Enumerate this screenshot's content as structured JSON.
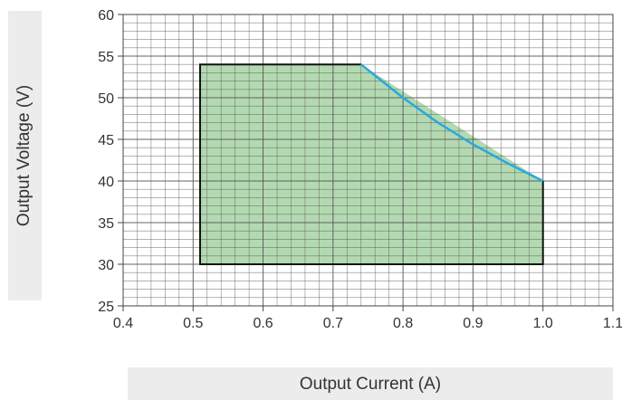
{
  "chart_data": {
    "type": "area",
    "title": "",
    "xlabel": "Output Current (A)",
    "ylabel": "Output Voltage (V)",
    "xlim": [
      0.4,
      1.1
    ],
    "ylim": [
      25,
      60
    ],
    "x_ticks": [
      "0.4",
      "0.5",
      "0.6",
      "0.7",
      "0.8",
      "0.9",
      "1.0",
      "1.1"
    ],
    "y_ticks": [
      "25",
      "30",
      "35",
      "40",
      "45",
      "50",
      "55",
      "60"
    ],
    "grid": true,
    "region": [
      {
        "x": 0.51,
        "y": 30
      },
      {
        "x": 0.51,
        "y": 54
      },
      {
        "x": 0.74,
        "y": 54
      },
      {
        "x": 1.0,
        "y": 40
      },
      {
        "x": 1.0,
        "y": 30
      }
    ],
    "constant_power_curve": [
      {
        "x": 0.74,
        "y": 54
      },
      {
        "x": 0.8,
        "y": 50
      },
      {
        "x": 0.85,
        "y": 47
      },
      {
        "x": 0.9,
        "y": 44.4
      },
      {
        "x": 0.95,
        "y": 42.1
      },
      {
        "x": 1.0,
        "y": 40
      }
    ],
    "colors": {
      "fill": "#b3d9b0",
      "outline": "#111111",
      "curve": "#29a8e0",
      "grid": "#555555"
    }
  }
}
